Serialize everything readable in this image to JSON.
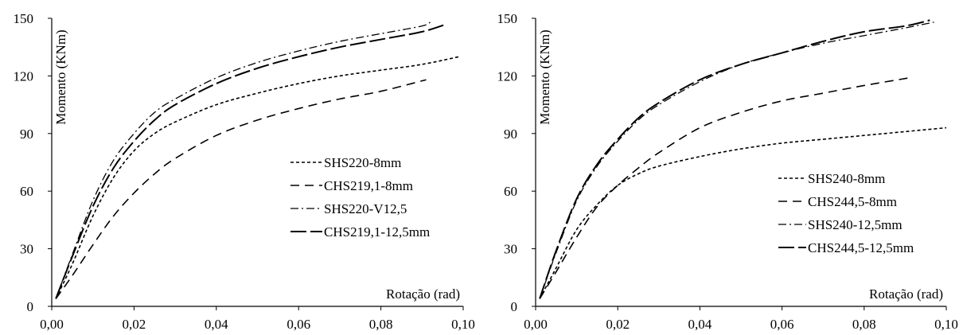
{
  "chart_data": [
    {
      "type": "line",
      "ylabel": "Momento  (KNm)",
      "xlabel": "Rotação (rad)",
      "xlim": [
        0,
        0.1
      ],
      "ylim": [
        0,
        150
      ],
      "xticks": [
        "0,00",
        "0,02",
        "0,04",
        "0,06",
        "0,08",
        "0,10"
      ],
      "yticks": [
        "0",
        "30",
        "60",
        "90",
        "120",
        "150"
      ],
      "grid": false,
      "legend_position": "center-right",
      "series": [
        {
          "name": "SHS220-8mm",
          "dash": "short-dash",
          "x": [
            0.001,
            0.005,
            0.01,
            0.015,
            0.02,
            0.025,
            0.03,
            0.04,
            0.05,
            0.06,
            0.07,
            0.08,
            0.09,
            0.099
          ],
          "y": [
            4,
            22,
            47,
            67,
            81,
            90,
            96,
            105,
            111,
            116,
            120,
            123,
            126,
            130
          ]
        },
        {
          "name": "CHS219,1-8mm",
          "dash": "long-dash",
          "x": [
            0.001,
            0.005,
            0.01,
            0.015,
            0.02,
            0.025,
            0.03,
            0.04,
            0.05,
            0.06,
            0.07,
            0.08,
            0.091
          ],
          "y": [
            4,
            16,
            32,
            47,
            59,
            69,
            77,
            89,
            97,
            103,
            108,
            112,
            118
          ]
        },
        {
          "name": "SHS220-V12,5",
          "dash": "dash-dot",
          "x": [
            0.001,
            0.005,
            0.01,
            0.015,
            0.02,
            0.025,
            0.03,
            0.04,
            0.05,
            0.06,
            0.07,
            0.08,
            0.09,
            0.092
          ],
          "y": [
            4,
            27,
            55,
            76,
            90,
            101,
            108,
            119,
            127,
            133,
            138,
            142,
            146,
            148
          ]
        },
        {
          "name": "CHS219,1-12,5mm",
          "dash": "long-dash-heavy",
          "x": [
            0.001,
            0.005,
            0.01,
            0.015,
            0.02,
            0.025,
            0.03,
            0.04,
            0.05,
            0.06,
            0.07,
            0.08,
            0.09,
            0.096
          ],
          "y": [
            4,
            26,
            52,
            72,
            86,
            97,
            105,
            116,
            124,
            130,
            135,
            139,
            143,
            147
          ]
        }
      ]
    },
    {
      "type": "line",
      "ylabel": "Momento  (KNm)",
      "xlabel": "Rotação (rad)",
      "xlim": [
        0,
        0.1
      ],
      "ylim": [
        0,
        150
      ],
      "xticks": [
        "0,00",
        "0,02",
        "0,04",
        "0,06",
        "0,08",
        "0,10"
      ],
      "yticks": [
        "0",
        "30",
        "60",
        "90",
        "120",
        "150"
      ],
      "grid": false,
      "legend_position": "bottom-right",
      "series": [
        {
          "name": "SHS240-8mm",
          "dash": "short-dash",
          "x": [
            0.001,
            0.005,
            0.01,
            0.015,
            0.02,
            0.025,
            0.03,
            0.04,
            0.05,
            0.06,
            0.07,
            0.08,
            0.09,
            0.1
          ],
          "y": [
            4,
            20,
            40,
            53,
            63,
            69,
            73,
            78,
            82,
            85,
            87,
            89,
            91,
            93
          ]
        },
        {
          "name": "CHS244,5-8mm",
          "dash": "long-dash",
          "x": [
            0.001,
            0.005,
            0.01,
            0.015,
            0.02,
            0.025,
            0.03,
            0.04,
            0.05,
            0.06,
            0.07,
            0.08,
            0.091
          ],
          "y": [
            4,
            18,
            36,
            52,
            63,
            72,
            80,
            93,
            101,
            107,
            111,
            115,
            119
          ]
        },
        {
          "name": "SHS240-12,5mm",
          "dash": "dash-dot",
          "x": [
            0.001,
            0.005,
            0.01,
            0.015,
            0.02,
            0.025,
            0.03,
            0.04,
            0.05,
            0.06,
            0.07,
            0.08,
            0.09,
            0.097
          ],
          "y": [
            4,
            28,
            55,
            73,
            86,
            97,
            105,
            117,
            126,
            132,
            137,
            141,
            145,
            148
          ]
        },
        {
          "name": "CHS244,5-12,5mm",
          "dash": "long-dash-heavy",
          "x": [
            0.001,
            0.005,
            0.01,
            0.015,
            0.02,
            0.025,
            0.03,
            0.04,
            0.05,
            0.06,
            0.07,
            0.08,
            0.09,
            0.096
          ],
          "y": [
            4,
            29,
            56,
            74,
            87,
            98,
            106,
            118,
            126,
            132,
            138,
            143,
            146,
            149
          ]
        }
      ]
    }
  ]
}
